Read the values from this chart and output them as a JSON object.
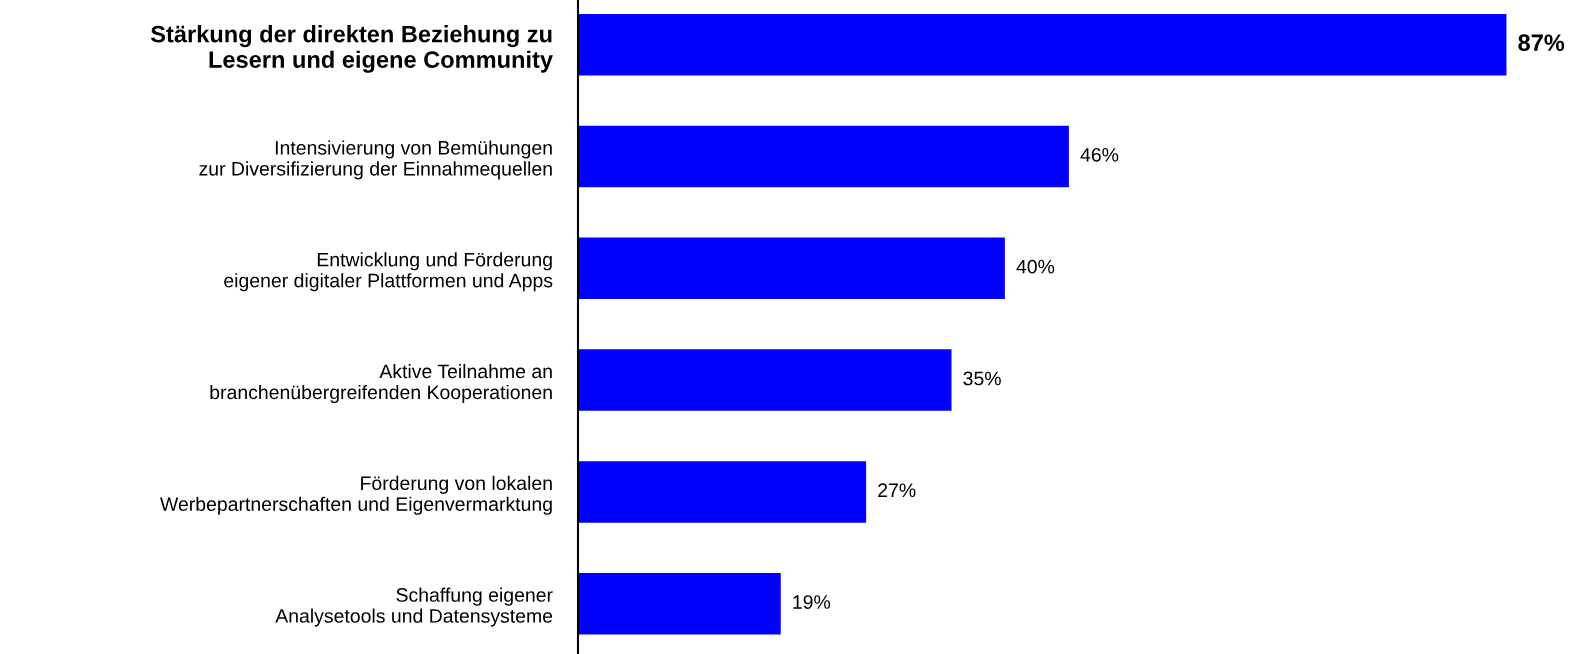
{
  "chart_data": {
    "type": "bar",
    "orientation": "horizontal",
    "categories": [
      "Stärkung der direkten Beziehung zu\nLesern und eigene Community",
      "Intensivierung von Bemühungen\nzur Diversifizierung der Einnahmequellen",
      "Entwicklung und Förderung\neigener digitaler Plattformen und Apps",
      "Aktive Teilnahme an\nbranchenübergreifenden Kooperationen",
      "Förderung von lokalen\nWerbepartnerschaften und Eigenvermarktung",
      "Schaffung eigener\nAnalysetools und Datensysteme"
    ],
    "values": [
      87,
      46,
      40,
      35,
      27,
      19
    ],
    "value_labels": [
      "87%",
      "46%",
      "40%",
      "35%",
      "27%",
      "19%"
    ],
    "color": "#0000ff",
    "grid": false,
    "legend": false
  }
}
